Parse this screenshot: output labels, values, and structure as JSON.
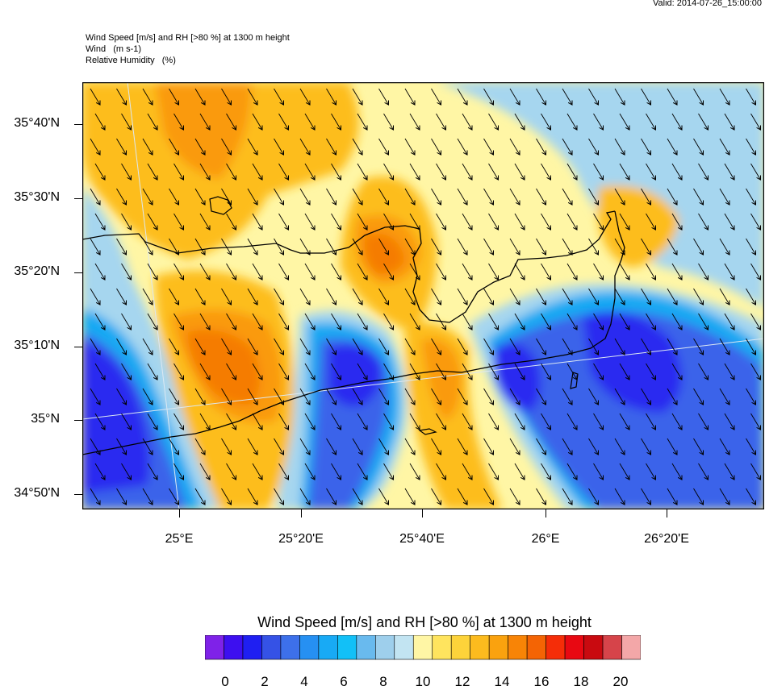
{
  "valid_time": "Valid: 2014-07-26_15:00:00",
  "header": {
    "line1": "Wind Speed [m/s] and RH [>80 %] at 1300 m height",
    "line2": "Wind   (m s-1)",
    "line3": "Relative Humidity   (%)"
  },
  "map": {
    "lat_labels": [
      "35°40'N",
      "35°30'N",
      "35°20'N",
      "35°10'N",
      "35°N",
      "34°50'N"
    ],
    "lon_labels": [
      "25°E",
      "25°20'E",
      "25°40'E",
      "26°E",
      "26°20'E"
    ],
    "background_color": "#fff6a5",
    "wind_direction": "north-west to south-east",
    "blobs": [
      {
        "level": "blue-dark",
        "color": "#2a2bf0"
      },
      {
        "level": "blue-mid",
        "color": "#3a64ea"
      },
      {
        "level": "sky",
        "color": "#17a9f3"
      },
      {
        "level": "light-blue",
        "color": "#a6d6ef"
      },
      {
        "level": "yellow",
        "color": "#ffe25a"
      },
      {
        "level": "gold",
        "color": "#fdbd1d"
      },
      {
        "level": "orange",
        "color": "#fa9a0c"
      },
      {
        "level": "dark-orange",
        "color": "#f57c06"
      }
    ]
  },
  "colorbar": {
    "title": "Wind Speed [m/s] and RH [>80 %] at 1300 m height",
    "colors": [
      "#7f22e8",
      "#3d0ff0",
      "#1f1ff2",
      "#3552e6",
      "#3d70ea",
      "#2690f2",
      "#18aaf5",
      "#12c0f7",
      "#69baee",
      "#9ecfec",
      "#c2e4f2",
      "#fff6a5",
      "#ffe45e",
      "#fdd33a",
      "#fcbb1e",
      "#faa20e",
      "#f88406",
      "#f46404",
      "#f52d08",
      "#e80812",
      "#c90a10",
      "#d6444a",
      "#f3a7a8"
    ],
    "labels": [
      "0",
      "2",
      "4",
      "6",
      "8",
      "10",
      "12",
      "14",
      "16",
      "18",
      "20"
    ]
  }
}
